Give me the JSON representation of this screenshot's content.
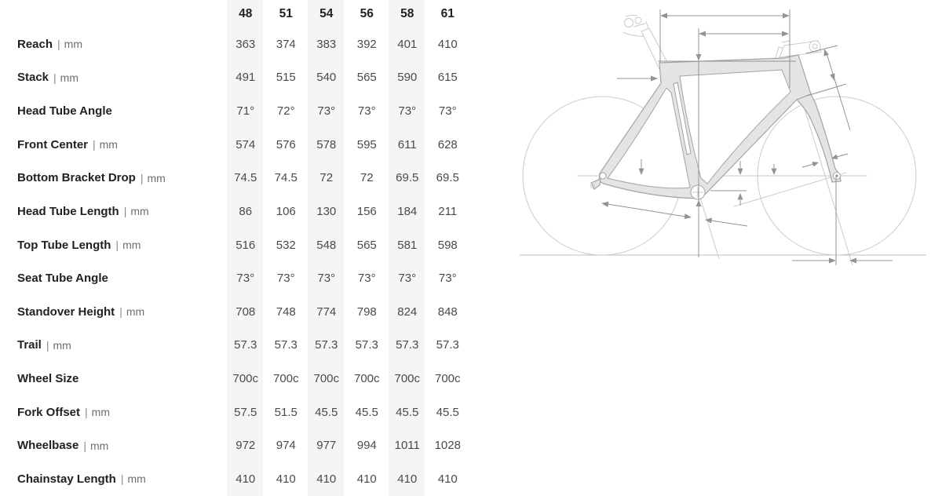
{
  "table": {
    "unit_divider": "|",
    "sizes": [
      "48",
      "51",
      "54",
      "56",
      "58",
      "61"
    ],
    "rows": [
      {
        "label": "Reach",
        "unit": "mm",
        "values": [
          "363",
          "374",
          "383",
          "392",
          "401",
          "410"
        ]
      },
      {
        "label": "Stack",
        "unit": "mm",
        "values": [
          "491",
          "515",
          "540",
          "565",
          "590",
          "615"
        ]
      },
      {
        "label": "Head Tube Angle",
        "unit": "",
        "values": [
          "71°",
          "72°",
          "73°",
          "73°",
          "73°",
          "73°"
        ]
      },
      {
        "label": "Front Center",
        "unit": "mm",
        "values": [
          "574",
          "576",
          "578",
          "595",
          "611",
          "628"
        ]
      },
      {
        "label": "Bottom Bracket Drop",
        "unit": "mm",
        "values": [
          "74.5",
          "74.5",
          "72",
          "72",
          "69.5",
          "69.5"
        ]
      },
      {
        "label": "Head Tube Length",
        "unit": "mm",
        "values": [
          "86",
          "106",
          "130",
          "156",
          "184",
          "211"
        ]
      },
      {
        "label": "Top Tube Length",
        "unit": "mm",
        "values": [
          "516",
          "532",
          "548",
          "565",
          "581",
          "598"
        ]
      },
      {
        "label": "Seat Tube Angle",
        "unit": "",
        "values": [
          "73°",
          "73°",
          "73°",
          "73°",
          "73°",
          "73°"
        ]
      },
      {
        "label": "Standover Height",
        "unit": "mm",
        "values": [
          "708",
          "748",
          "774",
          "798",
          "824",
          "848"
        ]
      },
      {
        "label": "Trail",
        "unit": "mm",
        "values": [
          "57.3",
          "57.3",
          "57.3",
          "57.3",
          "57.3",
          "57.3"
        ]
      },
      {
        "label": "Wheel Size",
        "unit": "",
        "values": [
          "700c",
          "700c",
          "700c",
          "700c",
          "700c",
          "700c"
        ]
      },
      {
        "label": "Fork Offset",
        "unit": "mm",
        "values": [
          "57.5",
          "51.5",
          "45.5",
          "45.5",
          "45.5",
          "45.5"
        ]
      },
      {
        "label": "Wheelbase",
        "unit": "mm",
        "values": [
          "972",
          "974",
          "977",
          "994",
          "1011",
          "1028"
        ]
      },
      {
        "label": "Chainstay Length",
        "unit": "mm",
        "values": [
          "410",
          "410",
          "410",
          "410",
          "410",
          "410"
        ]
      }
    ]
  },
  "diagram": {
    "name": "bike-frame-geometry-diagram"
  },
  "colors": {
    "stripe": "#f5f5f6",
    "label": "#212121",
    "value": "#4a4a4a",
    "unit": "#6e6e6e",
    "pipe": "#8a8a8a",
    "frame-fill": "#e2e4e5",
    "frame-stroke": "#a0a5a8",
    "dim": "#8f9499",
    "sketch": "#c7cacc",
    "ground": "#babdbf"
  }
}
